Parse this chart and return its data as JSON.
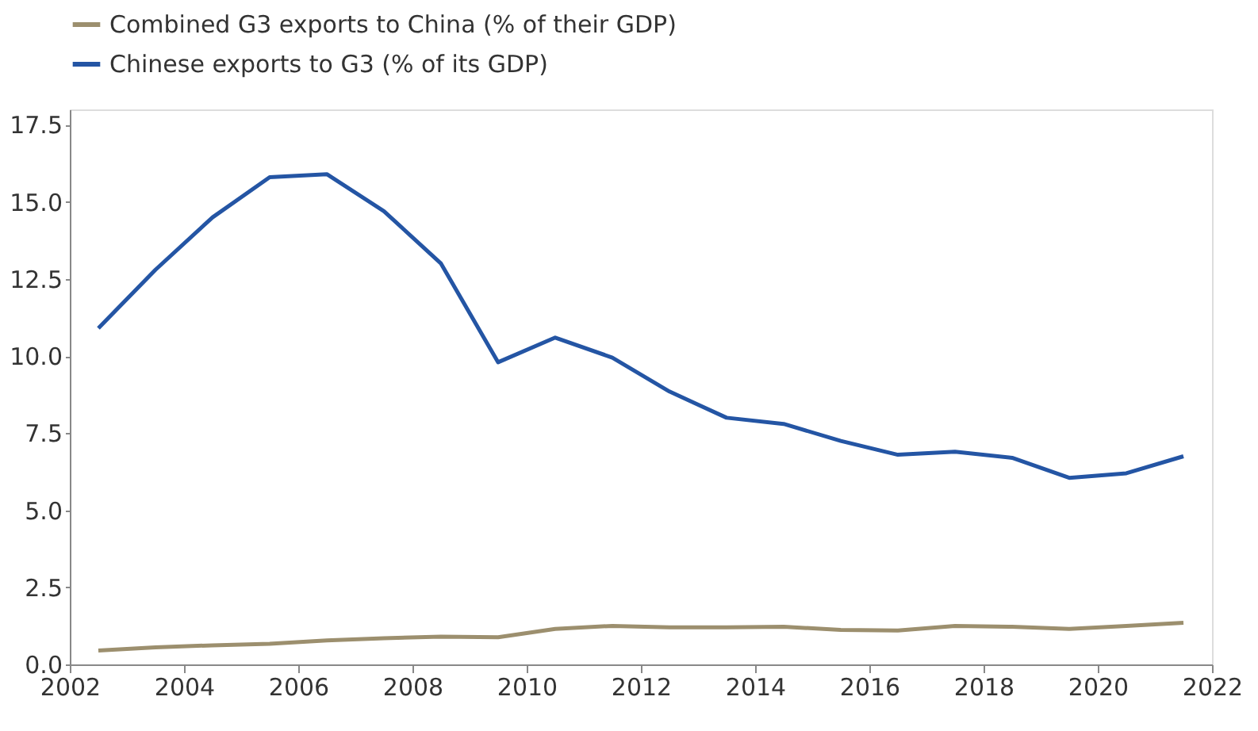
{
  "chart_data": {
    "type": "line",
    "x": [
      2002.5,
      2003.5,
      2004.5,
      2005.5,
      2006.5,
      2007.5,
      2008.5,
      2009.5,
      2010.5,
      2011.5,
      2012.5,
      2013.5,
      2014.5,
      2015.5,
      2016.5,
      2017.5,
      2018.5,
      2019.5,
      2020.5,
      2021.5
    ],
    "series": [
      {
        "name": "Combined G3 exports to China (% of their GDP)",
        "color": "#9c8f6e",
        "values": [
          0.45,
          0.55,
          0.62,
          0.67,
          0.78,
          0.85,
          0.9,
          0.88,
          1.15,
          1.25,
          1.2,
          1.2,
          1.22,
          1.12,
          1.1,
          1.25,
          1.22,
          1.15,
          1.25,
          1.35
        ]
      },
      {
        "name": "Chinese exports to G3 (% of its GDP)",
        "color": "#2455a4",
        "values": [
          10.9,
          12.8,
          14.5,
          15.8,
          15.9,
          14.7,
          13.0,
          9.8,
          10.6,
          9.95,
          8.85,
          8.0,
          7.8,
          7.25,
          6.8,
          6.9,
          6.7,
          6.05,
          6.2,
          6.75
        ]
      }
    ],
    "xlim": [
      2002,
      2022
    ],
    "xticks": [
      2002,
      2004,
      2006,
      2008,
      2010,
      2012,
      2014,
      2016,
      2018,
      2020,
      2022
    ],
    "ylim": [
      0,
      18
    ],
    "yticks": [
      {
        "value": 0,
        "label": "0.0"
      },
      {
        "value": 2.5,
        "label": "2.5"
      },
      {
        "value": 5,
        "label": "5.0"
      },
      {
        "value": 7.5,
        "label": "7.5"
      },
      {
        "value": 10,
        "label": "10.0"
      },
      {
        "value": 12.5,
        "label": "12.5"
      },
      {
        "value": 15,
        "label": "15.0"
      },
      {
        "value": 17.5,
        "label": "17.5"
      }
    ],
    "grid": false,
    "legend": "top left",
    "marker": "none",
    "line_style": "solid"
  }
}
